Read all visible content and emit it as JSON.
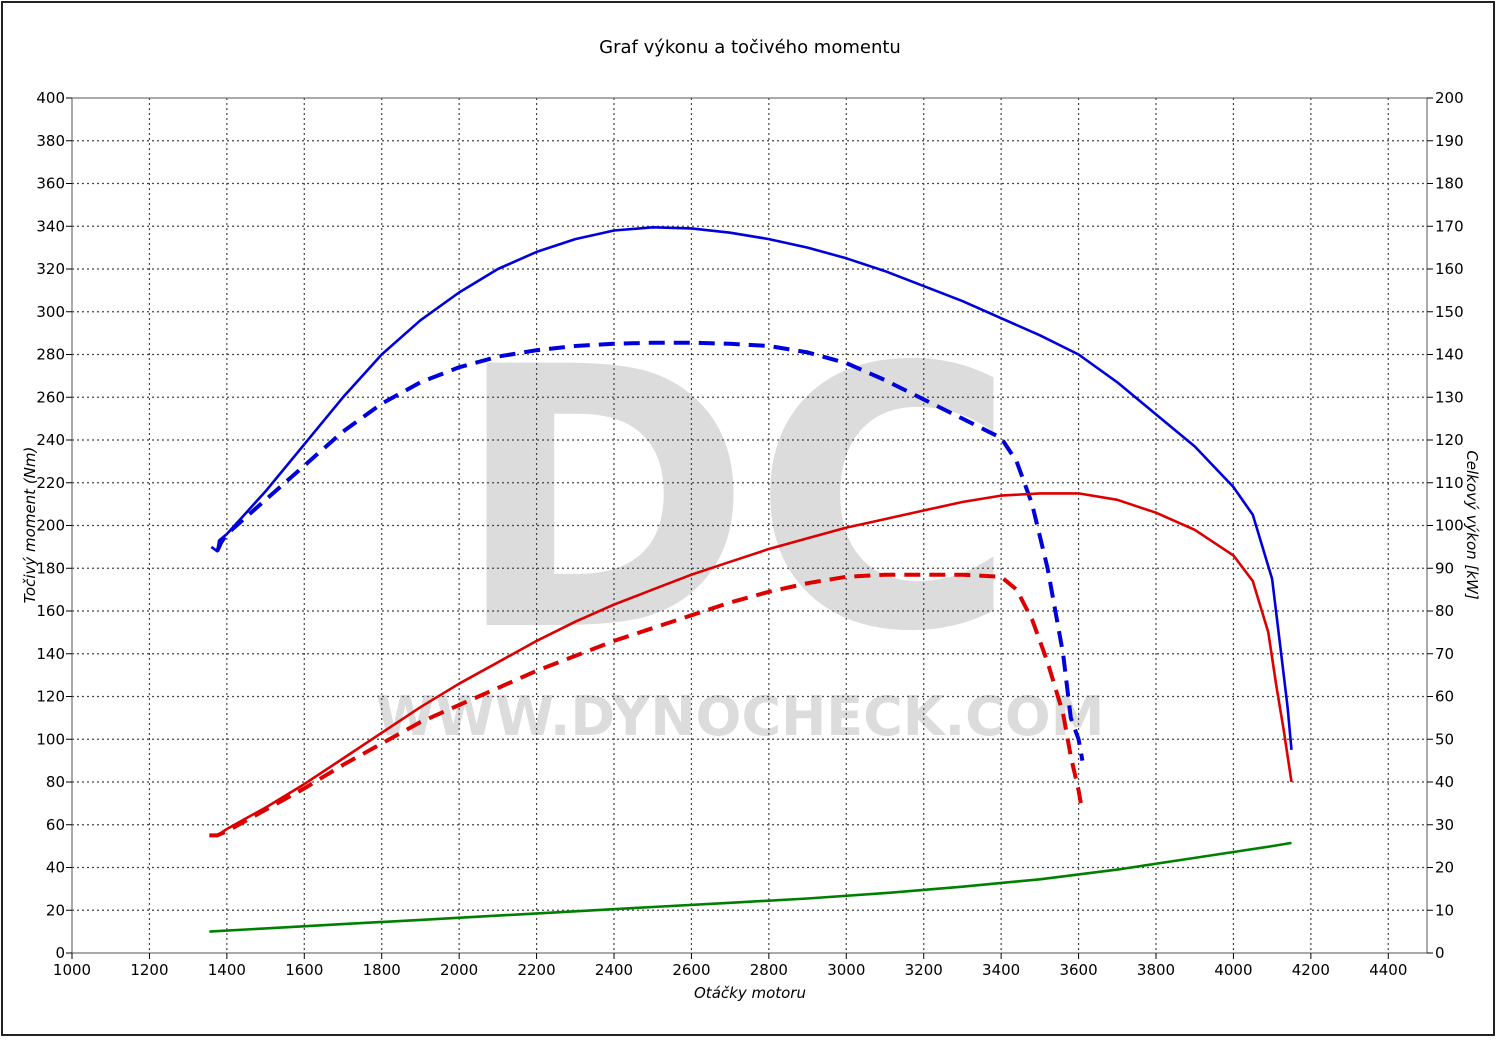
{
  "chart_data": {
    "type": "line",
    "title": "Graf výkonu a točivého momentu",
    "xlabel": "Otáčky motoru",
    "ylabel_left": "Točivý moment (Nm)",
    "ylabel_right": "Celkový výkon [kW]",
    "xlim": [
      1000,
      4500
    ],
    "ylim_left": [
      0,
      400
    ],
    "ylim_right": [
      0,
      200
    ],
    "x_ticks": [
      "1000",
      "1200",
      "1400",
      "1600",
      "1800",
      "2000",
      "2200",
      "2400",
      "2600",
      "2800",
      "3000",
      "3200",
      "3400",
      "3600",
      "3800",
      "4000",
      "4200",
      "4400"
    ],
    "y_ticks_left": [
      "0",
      "20",
      "40",
      "60",
      "80",
      "100",
      "120",
      "140",
      "160",
      "180",
      "200",
      "220",
      "240",
      "260",
      "280",
      "300",
      "320",
      "340",
      "360",
      "380",
      "400"
    ],
    "y_ticks_right": [
      "0",
      "10",
      "20",
      "30",
      "40",
      "50",
      "60",
      "70",
      "80",
      "90",
      "100",
      "110",
      "120",
      "130",
      "140",
      "150",
      "160",
      "170",
      "180",
      "190",
      "200"
    ],
    "grid": true,
    "watermark": {
      "logo": "DC",
      "text": "WWW.DYNOCHECK.COM"
    },
    "series": [
      {
        "axis": "left",
        "color": "#0000dd",
        "style": "solid",
        "x": [
          1360,
          1375,
          1380,
          1400,
          1450,
          1500,
          1600,
          1700,
          1800,
          1900,
          2000,
          2100,
          2200,
          2300,
          2400,
          2500,
          2600,
          2700,
          2800,
          2900,
          3000,
          3100,
          3200,
          3300,
          3400,
          3500,
          3600,
          3700,
          3800,
          3900,
          4000,
          4050,
          4100,
          4120,
          4140,
          4150
        ],
        "values": [
          190,
          188,
          193,
          196,
          206,
          216,
          238,
          260,
          280,
          296,
          309,
          320,
          328,
          334,
          338,
          339.5,
          339,
          337,
          334,
          330,
          325,
          319,
          312,
          305,
          297,
          289,
          280,
          267,
          252,
          237,
          218,
          205,
          175,
          145,
          115,
          95
        ]
      },
      {
        "axis": "left",
        "color": "#0000dd",
        "style": "dashed",
        "x": [
          1375,
          1385,
          1400,
          1450,
          1500,
          1600,
          1700,
          1800,
          1900,
          2000,
          2100,
          2200,
          2300,
          2400,
          2500,
          2600,
          2700,
          2800,
          2900,
          3000,
          3100,
          3200,
          3300,
          3400,
          3440,
          3480,
          3520,
          3560,
          3580,
          3600,
          3610
        ],
        "values": [
          188,
          192,
          196,
          204,
          212,
          228,
          244,
          257,
          267,
          274,
          279,
          282,
          284,
          285,
          285.5,
          285.5,
          285,
          284,
          281,
          276,
          268,
          259,
          250,
          241,
          230,
          210,
          180,
          140,
          110,
          100,
          90
        ]
      },
      {
        "axis": "right",
        "color": "#dd0000",
        "style": "solid",
        "x": [
          1355,
          1375,
          1400,
          1450,
          1500,
          1600,
          1700,
          1800,
          1900,
          2000,
          2100,
          2200,
          2300,
          2400,
          2500,
          2600,
          2700,
          2800,
          2900,
          3000,
          3100,
          3200,
          3300,
          3400,
          3500,
          3600,
          3700,
          3800,
          3900,
          4000,
          4050,
          4090,
          4110,
          4130,
          4150
        ],
        "values": [
          27.5,
          27.5,
          29,
          31.5,
          34,
          39.5,
          45.5,
          51.5,
          57.5,
          63,
          68,
          73,
          77.5,
          81.5,
          85,
          88.5,
          91.5,
          94.5,
          97,
          99.5,
          101.5,
          103.5,
          105.5,
          107,
          107.5,
          107.5,
          106,
          103,
          99,
          93,
          87,
          75,
          63,
          52,
          40
        ]
      },
      {
        "axis": "right",
        "color": "#dd0000",
        "style": "dashed",
        "x": [
          1355,
          1375,
          1400,
          1450,
          1500,
          1600,
          1700,
          1800,
          1900,
          2000,
          2100,
          2200,
          2300,
          2400,
          2500,
          2600,
          2700,
          2800,
          2900,
          3000,
          3100,
          3200,
          3300,
          3400,
          3440,
          3480,
          3520,
          3560,
          3580,
          3600,
          3610
        ],
        "values": [
          27.5,
          27.5,
          28.5,
          31,
          33.5,
          38.5,
          44,
          49,
          54,
          58,
          62,
          66,
          69.5,
          73,
          76,
          79,
          82,
          84.5,
          86.5,
          88,
          88.5,
          88.5,
          88.5,
          88,
          85,
          78,
          68,
          56,
          46,
          38,
          33
        ]
      },
      {
        "axis": "left",
        "color": "#008000",
        "style": "solid",
        "x": [
          1355,
          1500,
          1700,
          1900,
          2100,
          2300,
          2500,
          2700,
          2900,
          3100,
          3300,
          3500,
          3700,
          3900,
          4100,
          4150
        ],
        "values": [
          10,
          11.5,
          13.5,
          15.5,
          17.5,
          19.5,
          21.5,
          23.5,
          25.5,
          28,
          31,
          34.5,
          39,
          44.5,
          50,
          51.5
        ]
      }
    ]
  }
}
